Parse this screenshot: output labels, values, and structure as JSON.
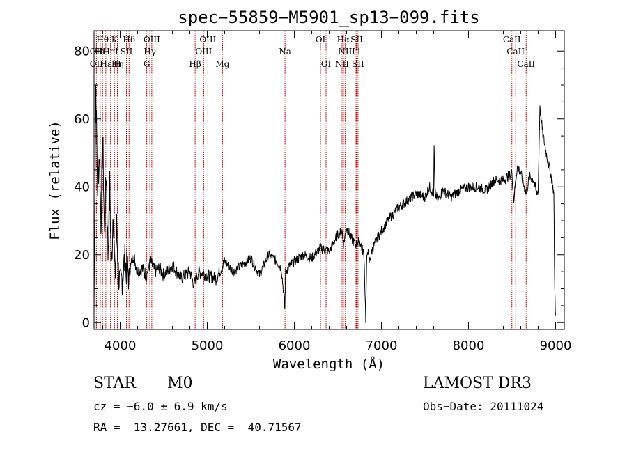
{
  "chart_data": {
    "type": "line",
    "title": "spec−55859−M5901_sp13−099.fits",
    "xlabel": "Wavelength (Å)",
    "ylabel": "Flux (relative)",
    "xlim": [
      3700,
      9100
    ],
    "ylim": [
      -2,
      86
    ],
    "x_ticks": [
      4000,
      5000,
      6000,
      7000,
      8000,
      9000
    ],
    "x_tick_labels": [
      "4000",
      "5000",
      "6000",
      "7000",
      "8000",
      "9000"
    ],
    "y_ticks": [
      0,
      20,
      40,
      60,
      80
    ],
    "y_tick_labels": [
      "0",
      "20",
      "40",
      "60",
      "80"
    ],
    "grid": false,
    "series": [
      {
        "name": "flux",
        "x": [
          3700,
          3720,
          3740,
          3760,
          3780,
          3800,
          3820,
          3840,
          3860,
          3880,
          3900,
          3920,
          3940,
          3960,
          3980,
          4000,
          4050,
          4100,
          4150,
          4200,
          4250,
          4300,
          4350,
          4400,
          4450,
          4500,
          4600,
          4700,
          4800,
          4850,
          4900,
          5000,
          5100,
          5200,
          5300,
          5400,
          5500,
          5600,
          5700,
          5800,
          5850,
          5880,
          5890,
          5900,
          5950,
          6000,
          6100,
          6200,
          6300,
          6400,
          6500,
          6550,
          6563,
          6600,
          6650,
          6700,
          6750,
          6800,
          6820,
          6830,
          6840,
          6860,
          6900,
          7000,
          7100,
          7200,
          7300,
          7400,
          7500,
          7550,
          7600,
          7605,
          7615,
          7650,
          7700,
          7800,
          7900,
          8000,
          8100,
          8200,
          8300,
          8400,
          8500,
          8520,
          8542,
          8560,
          8600,
          8640,
          8662,
          8700,
          8750,
          8780,
          8800,
          8820,
          8850,
          8900,
          8950,
          8980,
          8990,
          9000
        ],
        "y": [
          3,
          70,
          40,
          50,
          30,
          55,
          25,
          45,
          20,
          40,
          15,
          35,
          12,
          28,
          15,
          10,
          18,
          14,
          20,
          15,
          16,
          14,
          18,
          15,
          16,
          14,
          17,
          13,
          15,
          11,
          15,
          14,
          13,
          18,
          15,
          17,
          19,
          14,
          20,
          18,
          16,
          8,
          4,
          15,
          17,
          18,
          20,
          19,
          22,
          21,
          26,
          27,
          23,
          28,
          25,
          23,
          24,
          20,
          1,
          17,
          22,
          18,
          22,
          27,
          31,
          34,
          36,
          38,
          37,
          40,
          38,
          52,
          38,
          36,
          39,
          37,
          39,
          40,
          40,
          39,
          42,
          42,
          44,
          36,
          42,
          46,
          44,
          40,
          38,
          43,
          42,
          38,
          39,
          64,
          56,
          49,
          43,
          38,
          10,
          2
        ],
        "line_color": "#000000"
      }
    ],
    "spectral_lines": [
      {
        "label": "Hθ",
        "x": 3798,
        "row": 0
      },
      {
        "label": "K",
        "x": 3934,
        "row": 0
      },
      {
        "label": "Hδ",
        "x": 4102,
        "row": 0
      },
      {
        "label": "OIII",
        "x": 4363,
        "row": 0
      },
      {
        "label": "OIII",
        "x": 5007,
        "row": 0
      },
      {
        "label": "OI",
        "x": 6300,
        "row": 0
      },
      {
        "label": "Hα",
        "x": 6563,
        "row": 0
      },
      {
        "label": "SII",
        "x": 6716,
        "row": 0
      },
      {
        "label": "CaII",
        "x": 8498,
        "row": 0
      },
      {
        "label": "OII",
        "x": 3727,
        "row": 1
      },
      {
        "label": "Hι",
        "x": 3771,
        "row": 1
      },
      {
        "label": "HeI",
        "x": 3889,
        "row": 1
      },
      {
        "label": "SII",
        "x": 4072,
        "row": 1
      },
      {
        "label": "Hγ",
        "x": 4341,
        "row": 1
      },
      {
        "label": "OIII",
        "x": 4959,
        "row": 1
      },
      {
        "label": "Na",
        "x": 5893,
        "row": 1
      },
      {
        "label": "NII",
        "x": 6583,
        "row": 1
      },
      {
        "label": "Li",
        "x": 6708,
        "row": 1
      },
      {
        "label": "CaII",
        "x": 8542,
        "row": 1
      },
      {
        "label": "OII",
        "x": 3727,
        "row": 2
      },
      {
        "label": "Hε",
        "x": 3835,
        "row": 2
      },
      {
        "label": "Hη",
        "x": 3970,
        "row": 2
      },
      {
        "label": "H",
        "x": 3968,
        "row": 2
      },
      {
        "label": "G",
        "x": 4305,
        "row": 2
      },
      {
        "label": "Hβ",
        "x": 4861,
        "row": 2
      },
      {
        "label": "Mg",
        "x": 5175,
        "row": 2
      },
      {
        "label": "OI",
        "x": 6364,
        "row": 2
      },
      {
        "label": "NII",
        "x": 6548,
        "row": 2
      },
      {
        "label": "SII",
        "x": 6731,
        "row": 2
      },
      {
        "label": "CaII",
        "x": 8662,
        "row": 2
      }
    ],
    "line_marker_color": "#b00000"
  },
  "info": {
    "class_label": "STAR",
    "subclass": "M0",
    "survey": "LAMOST DR3",
    "cz": "cz = −6.0 ± 6.9 km/s",
    "obs_date": "Obs−Date: 20111024",
    "radec": "RA =  13.27661, DEC =  40.71567"
  }
}
